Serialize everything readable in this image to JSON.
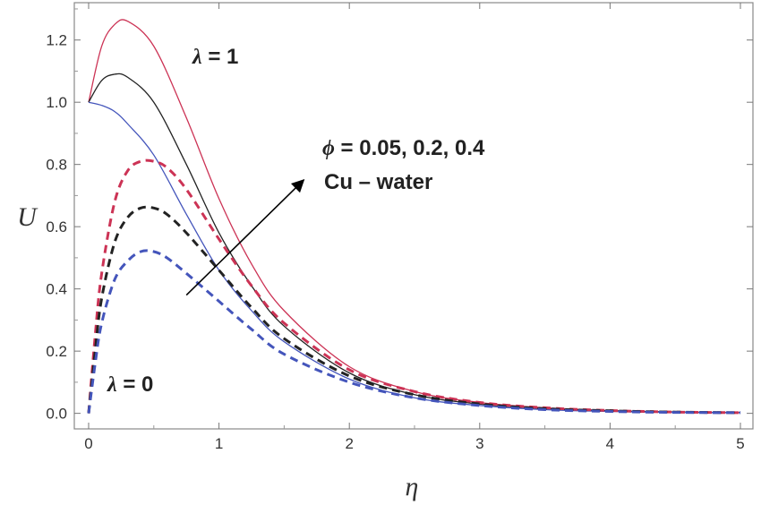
{
  "chart_data": {
    "type": "line",
    "xlabel": "η",
    "ylabel": "U",
    "xlim": [
      0,
      5
    ],
    "ylim": [
      -0.05,
      1.32
    ],
    "xticks": [
      0,
      1,
      2,
      3,
      4,
      5
    ],
    "xtick_labels": [
      "0",
      "1",
      "2",
      "3",
      "4",
      "5"
    ],
    "yticks": [
      0.0,
      0.2,
      0.4,
      0.6,
      0.8,
      1.0,
      1.2
    ],
    "ytick_labels": [
      "0.0",
      "0.2",
      "0.4",
      "0.6",
      "0.8",
      "1.0",
      "1.2"
    ],
    "grid": false,
    "series": [
      {
        "color": "#cc3355",
        "style": "solid",
        "x": [
          0,
          0.1,
          0.2,
          0.3,
          0.5,
          0.75,
          1,
          1.25,
          1.5,
          2,
          2.5,
          3,
          3.5,
          4,
          4.5,
          5
        ],
        "y": [
          1.0,
          1.18,
          1.25,
          1.26,
          1.18,
          0.95,
          0.69,
          0.48,
          0.33,
          0.15,
          0.07,
          0.035,
          0.018,
          0.009,
          0.004,
          0.002
        ]
      },
      {
        "color": "#222222",
        "style": "solid",
        "x": [
          0,
          0.1,
          0.2,
          0.3,
          0.5,
          0.75,
          1,
          1.25,
          1.5,
          2,
          2.5,
          3,
          3.5,
          4,
          4.5,
          5
        ],
        "y": [
          1.0,
          1.07,
          1.09,
          1.08,
          1.0,
          0.8,
          0.58,
          0.41,
          0.28,
          0.13,
          0.06,
          0.03,
          0.015,
          0.008,
          0.004,
          0.002
        ]
      },
      {
        "color": "#4455bb",
        "style": "solid",
        "x": [
          0,
          0.1,
          0.2,
          0.3,
          0.5,
          0.75,
          1,
          1.25,
          1.5,
          2,
          2.5,
          3,
          3.5,
          4,
          4.5,
          5
        ],
        "y": [
          1.0,
          0.99,
          0.97,
          0.93,
          0.83,
          0.64,
          0.46,
          0.33,
          0.23,
          0.11,
          0.05,
          0.025,
          0.012,
          0.006,
          0.003,
          0.002
        ]
      },
      {
        "color": "#cc3355",
        "style": "dashed",
        "x": [
          0,
          0.05,
          0.1,
          0.2,
          0.3,
          0.4,
          0.5,
          0.6,
          0.75,
          1,
          1.25,
          1.5,
          2,
          2.5,
          3,
          3.5,
          4,
          4.5,
          5
        ],
        "y": [
          0.0,
          0.25,
          0.45,
          0.68,
          0.78,
          0.81,
          0.81,
          0.79,
          0.72,
          0.56,
          0.41,
          0.29,
          0.14,
          0.07,
          0.035,
          0.018,
          0.009,
          0.004,
          0.002
        ]
      },
      {
        "color": "#222222",
        "style": "dashed",
        "x": [
          0,
          0.05,
          0.1,
          0.2,
          0.3,
          0.4,
          0.5,
          0.6,
          0.75,
          1,
          1.25,
          1.5,
          2,
          2.5,
          3,
          3.5,
          4,
          4.5,
          5
        ],
        "y": [
          0.0,
          0.2,
          0.37,
          0.55,
          0.63,
          0.66,
          0.66,
          0.64,
          0.58,
          0.46,
          0.34,
          0.24,
          0.12,
          0.06,
          0.03,
          0.015,
          0.008,
          0.004,
          0.002
        ]
      },
      {
        "color": "#4455bb",
        "style": "dashed",
        "x": [
          0,
          0.05,
          0.1,
          0.2,
          0.3,
          0.4,
          0.5,
          0.6,
          0.75,
          1,
          1.25,
          1.5,
          2,
          2.5,
          3,
          3.5,
          4,
          4.5,
          5
        ],
        "y": [
          0.0,
          0.16,
          0.29,
          0.43,
          0.49,
          0.52,
          0.52,
          0.5,
          0.45,
          0.36,
          0.27,
          0.19,
          0.1,
          0.05,
          0.025,
          0.012,
          0.006,
          0.003,
          0.002
        ]
      }
    ],
    "annotations": {
      "lambda_one": {
        "symbol": "λ",
        "text": " = 1"
      },
      "lambda_zero": {
        "symbol": "λ",
        "text": " = 0"
      },
      "phi_values": {
        "symbol": "ϕ",
        "text": " = 0.05, 0.2, 0.4"
      },
      "fluid": "Cu  – water"
    },
    "arrow": {
      "from": [
        0.75,
        0.38
      ],
      "to": [
        1.65,
        0.75
      ],
      "color": "#000000"
    }
  }
}
